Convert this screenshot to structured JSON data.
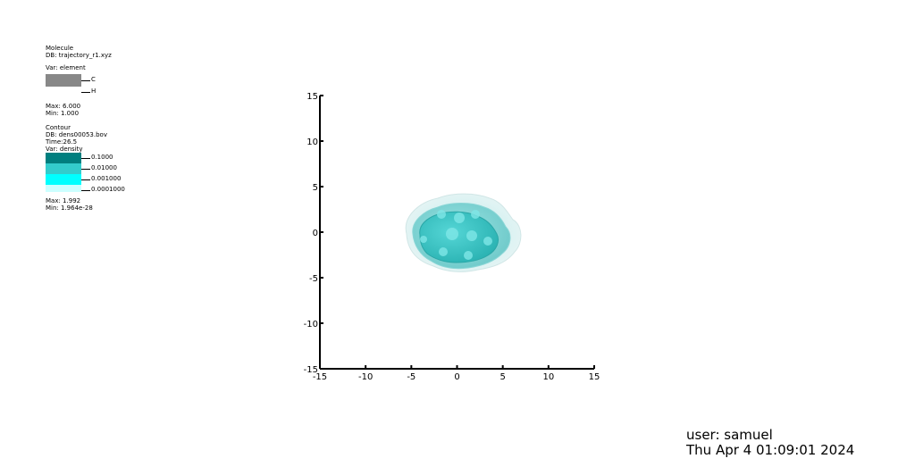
{
  "legend_molecule": {
    "title": "Molecule",
    "db": "DB: trajectory_r1.xyz",
    "var": "Var: element",
    "entries": [
      {
        "label": "C",
        "color": "#888888"
      },
      {
        "label": "H",
        "color": "#ffffff"
      }
    ],
    "max": "Max:  6.000",
    "min": "Min:  1.000"
  },
  "legend_contour": {
    "title": "Contour",
    "db": "DB: dens00053.bov",
    "time": "Time:26.5",
    "var": "Var: density",
    "levels": [
      {
        "label": "0.1000",
        "color": "#007f7f"
      },
      {
        "label": "0.01000",
        "color": "#33cccc"
      },
      {
        "label": "0.001000",
        "color": "#00ffff"
      },
      {
        "label": "0.0001000",
        "color": "#ccffff"
      }
    ],
    "max": "Max:  1.992",
    "min": "Min:  1.964e-28"
  },
  "plot": {
    "xlim": [
      -15,
      15
    ],
    "ylim": [
      -15,
      15
    ],
    "xticks": [
      "-15",
      "-10",
      "-5",
      "0",
      "5",
      "10",
      "15"
    ],
    "yticks": [
      "15",
      "10",
      "5",
      "0",
      "-5",
      "-10",
      "-15"
    ]
  },
  "footer": {
    "user": "user: samuel",
    "date": "Thu Apr  4 01:09:01 2024"
  }
}
